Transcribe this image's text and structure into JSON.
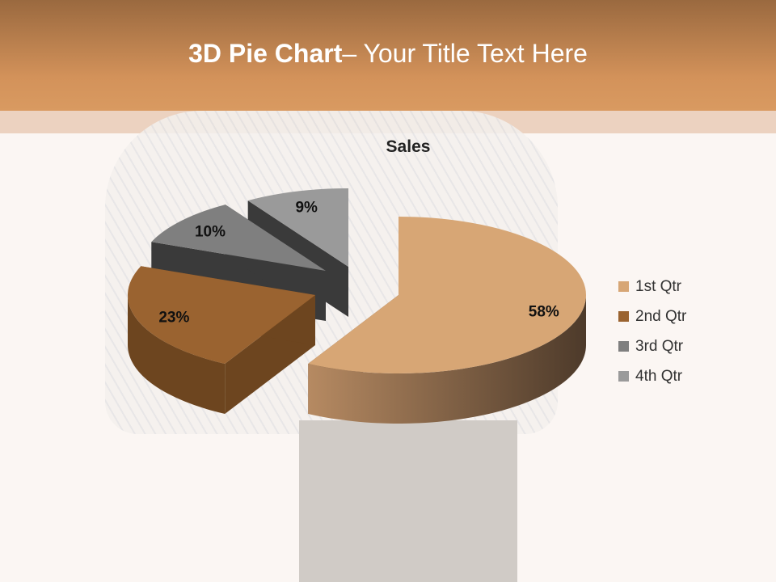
{
  "slide": {
    "title_bold": "3D Pie Chart",
    "title_rest": "– Your Title Text Here"
  },
  "chart_data": {
    "type": "pie",
    "title": "Sales",
    "three_d": true,
    "exploded": true,
    "categories": [
      "1st Qtr",
      "2nd Qtr",
      "3rd Qtr",
      "4th Qtr"
    ],
    "values": [
      58,
      23,
      10,
      9
    ],
    "data_labels": [
      "58%",
      "23%",
      "10%",
      "9%"
    ],
    "legend_position": "right",
    "colors": {
      "top": [
        "#D7A675",
        "#9A6330",
        "#7F7F7F",
        "#9A9A9A"
      ],
      "side": [
        "#6b5038",
        "#6d451f",
        "#3a3a3a",
        "#3a3a3a"
      ]
    }
  }
}
